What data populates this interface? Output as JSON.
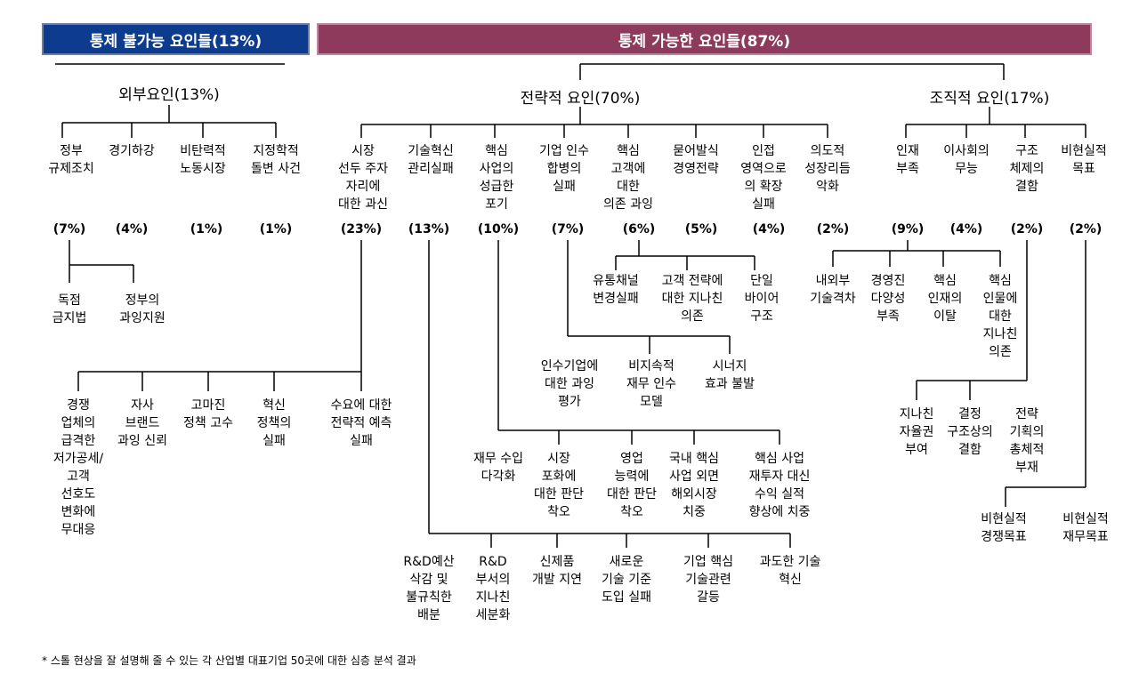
{
  "headers": {
    "uncontrollable": "통제 불가능 요인들(13%)",
    "controllable": "통제 가능한 요인들(87%)"
  },
  "categories": {
    "external": "외부요인(13%)",
    "strategic": "전략적 요인(70%)",
    "organizational": "조직적 요인(17%)"
  },
  "factors": [
    {
      "label": "정부\n규제조치",
      "pct": "(7%)"
    },
    {
      "label": "경기하강",
      "pct": "(4%)"
    },
    {
      "label": "비탄력적\n노동시장",
      "pct": "(1%)"
    },
    {
      "label": "지정학적\n돌변 사건",
      "pct": "(1%)"
    },
    {
      "label": "시장\n선두 주자\n자리에\n대한 과신",
      "pct": "(23%)"
    },
    {
      "label": "기술혁신\n관리실패",
      "pct": "(13%)"
    },
    {
      "label": "핵심\n사업의\n성급한\n포기",
      "pct": "(10%)"
    },
    {
      "label": "기업 인수\n합병의\n실패",
      "pct": "(7%)"
    },
    {
      "label": "핵심\n고객에\n대한\n의존 과잉",
      "pct": "(6%)"
    },
    {
      "label": "묻어발식\n경영전략",
      "pct": "(5%)"
    },
    {
      "label": "인접\n영역으로\n의 확장\n실패",
      "pct": "(4%)"
    },
    {
      "label": "의도적\n성장리듬\n악화",
      "pct": "(2%)"
    },
    {
      "label": "인재\n부족",
      "pct": "(9%)"
    },
    {
      "label": "이사회의\n무능",
      "pct": "(4%)"
    },
    {
      "label": "구조\n체제의\n결함",
      "pct": "(2%)"
    },
    {
      "label": "비현실적\n목표",
      "pct": "(2%)"
    }
  ],
  "sub": {
    "regulation": [
      "독점\n금지법",
      "정부의\n과잉지원"
    ],
    "customer": [
      "유통채널\n변경실패",
      "고객 전략에\n대한 지나친\n의존",
      "단일\n바이어\n구조"
    ],
    "mna": [
      "인수기업에\n대한 과잉\n평가",
      "비지속적\n재무 인수\n모델",
      "시너지\n효과 불발"
    ],
    "overconfidence": [
      "경쟁\n업체의\n급격한\n저가공세/\n고객\n선호도\n변화에\n무대응",
      "자사\n브랜드\n과잉 신뢰",
      "고마진\n정책 고수",
      "혁신\n정책의\n실패",
      "수요에 대한\n전략적 예측\n실패"
    ],
    "core": [
      "재무 수입\n다각화",
      "시장\n포화에\n대한 판단\n착오",
      "영업\n능력에\n대한 판단\n착오",
      "국내 핵심\n사업 외면\n해외시장\n치중",
      "핵심 사업\n재투자 대신\n수익 실적\n향상에 치중"
    ],
    "tech": [
      "R&D예산\n삭감 및\n불규칙한\n배분",
      "R&D\n부서의\n지나친\n세분화",
      "신제품\n개발 지연",
      "새로운\n기술 기준\n도입 실패",
      "기업 핵심\n기술관련\n갈등",
      "과도한 기술\n혁신"
    ],
    "talent": [
      "내외부\n기술격차",
      "경영진\n다양성\n부족",
      "핵심\n인재의\n이탈",
      "핵심\n인물에\n대한\n지나친\n의존"
    ],
    "structure": [
      "지나친\n자율권\n부여",
      "결정\n구조상의\n결함",
      "전략\n기획의\n총체적\n부재"
    ],
    "goals": [
      "비현실적\n경쟁목표",
      "비현실적\n재무목표"
    ]
  },
  "footnote": "* 스톨 현상을 잘 설명해 줄 수 있는 각 산업별 대표기업 50곳에 대한 심층 분석 결과"
}
